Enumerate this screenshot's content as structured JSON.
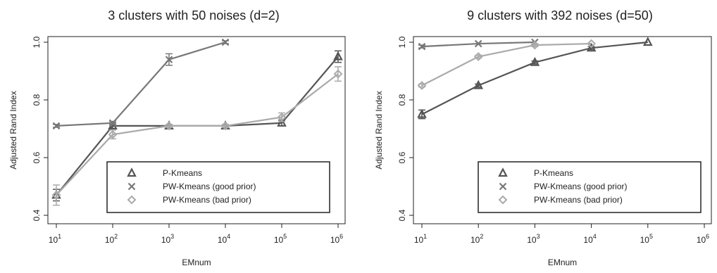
{
  "chart_data": [
    {
      "type": "line",
      "title": "3 clusters with 50 noises (d=2)",
      "xlabel": "EMnum",
      "ylabel": "Adjusted Rand Index",
      "x_scale": "log10",
      "x": [
        1,
        2,
        3,
        4,
        5,
        6
      ],
      "x_tick_base": "10",
      "x_tick_exponents": [
        "1",
        "2",
        "3",
        "4",
        "5",
        "6"
      ],
      "xlim": [
        1,
        6
      ],
      "ylim": [
        0.4,
        1.0
      ],
      "y_ticks": [
        "0.4",
        "0.6",
        "0.8",
        "1.0"
      ],
      "grid": false,
      "legend_position": "bottom-right",
      "series": [
        {
          "name": "P-Kmeans",
          "marker": "triangle",
          "color": "#555555",
          "x": [
            1,
            2,
            3,
            4,
            5,
            6
          ],
          "values": [
            0.47,
            0.71,
            0.71,
            0.71,
            0.72,
            0.95
          ],
          "errors": [
            0.02,
            0.01,
            0.005,
            0.005,
            0.01,
            0.02
          ]
        },
        {
          "name": "PW-Kmeans (good prior)",
          "marker": "x",
          "color": "#777777",
          "x": [
            1,
            2,
            3,
            4
          ],
          "values": [
            0.71,
            0.72,
            0.94,
            1.0
          ],
          "errors": [
            0.005,
            0.005,
            0.02,
            0.005
          ]
        },
        {
          "name": "PW-Kmeans (bad prior)",
          "marker": "diamond",
          "color": "#aaaaaa",
          "x": [
            1,
            2,
            3,
            4,
            5,
            6
          ],
          "values": [
            0.47,
            0.68,
            0.71,
            0.71,
            0.74,
            0.89
          ],
          "errors": [
            0.035,
            0.015,
            0.005,
            0.005,
            0.015,
            0.025
          ]
        }
      ]
    },
    {
      "type": "line",
      "title": "9 clusters with 392 noises (d=50)",
      "xlabel": "EMnum",
      "ylabel": "Adjusted Rand Index",
      "x_scale": "log10",
      "x": [
        1,
        2,
        3,
        4,
        5,
        6
      ],
      "x_tick_base": "10",
      "x_tick_exponents": [
        "1",
        "2",
        "3",
        "4",
        "5",
        "6"
      ],
      "xlim": [
        1,
        6
      ],
      "ylim": [
        0.4,
        1.0
      ],
      "y_ticks": [
        "0.4",
        "0.6",
        "0.8",
        "1.0"
      ],
      "grid": false,
      "legend_position": "bottom-right",
      "series": [
        {
          "name": "P-Kmeans",
          "marker": "triangle",
          "color": "#555555",
          "x": [
            1,
            2,
            3,
            4,
            5
          ],
          "values": [
            0.75,
            0.85,
            0.93,
            0.98,
            1.0
          ],
          "errors": [
            0.015,
            0.005,
            0.005,
            0.005,
            0.002
          ]
        },
        {
          "name": "PW-Kmeans (good prior)",
          "marker": "x",
          "color": "#777777",
          "x": [
            1,
            2,
            3
          ],
          "values": [
            0.985,
            0.995,
            1.0
          ],
          "errors": [
            0.005,
            0.002,
            0.002
          ]
        },
        {
          "name": "PW-Kmeans (bad prior)",
          "marker": "diamond",
          "color": "#aaaaaa",
          "x": [
            1,
            2,
            3,
            4
          ],
          "values": [
            0.85,
            0.95,
            0.99,
            0.995
          ],
          "errors": [
            0.005,
            0.005,
            0.005,
            0.002
          ]
        }
      ]
    }
  ]
}
